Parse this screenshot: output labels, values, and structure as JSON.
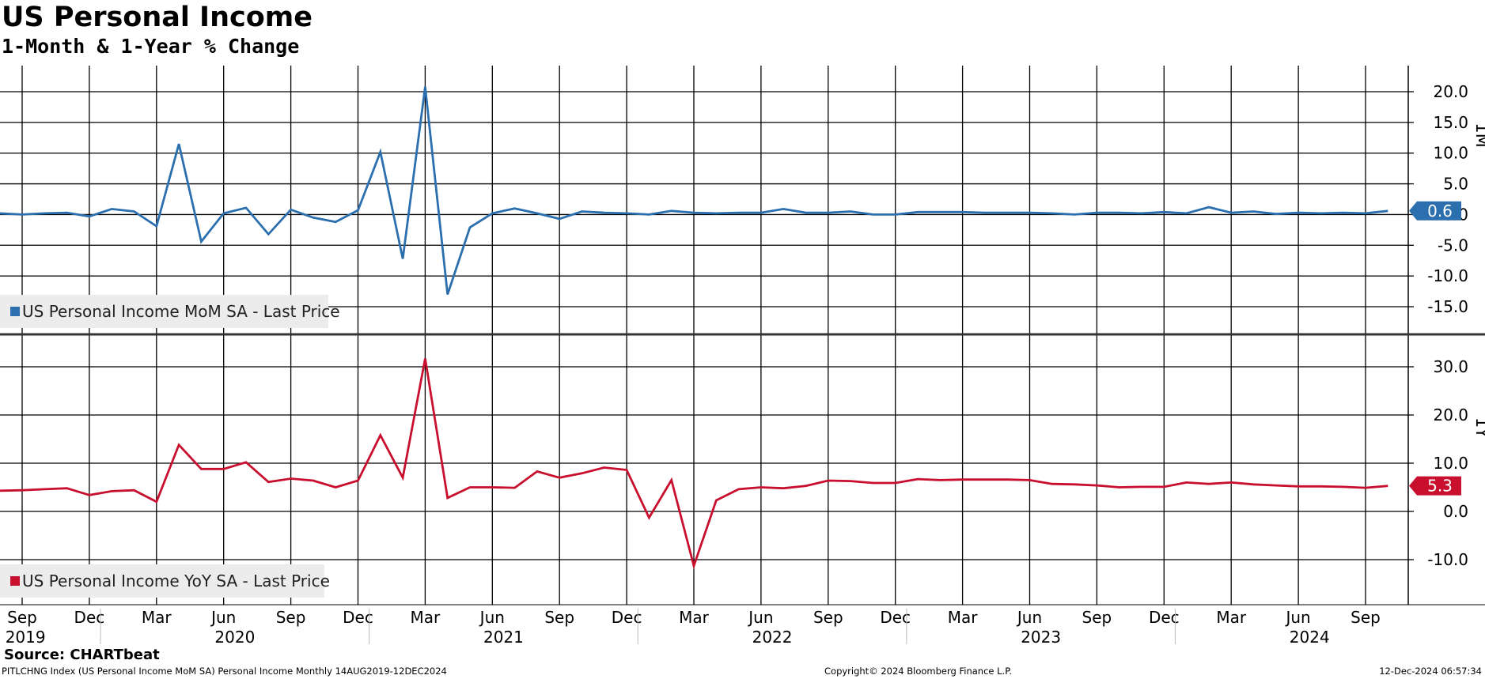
{
  "title": "US Personal Income",
  "subtitle": "1-Month & 1-Year % Change",
  "source": "Source: CHARTbeat",
  "footer": {
    "left": "PITLCHNG Index (US Personal Income MoM SA) Personal Income  Monthly 14AUG2019-12DEC2024",
    "center": "Copyright© 2024 Bloomberg Finance L.P.",
    "right": "12-Dec-2024 06:57:34"
  },
  "colors": {
    "mom": "#2c6fae",
    "yoy": "#c8102e",
    "grid": "#000000"
  },
  "chart_data": [
    {
      "type": "line",
      "axis_label": "1M",
      "legend": "US Personal Income MoM SA - Last Price",
      "legend_position": "bottom-left",
      "last_value_label": "0.6",
      "ylim": [
        -18,
        23
      ],
      "yticks": [
        "20.0",
        "15.0",
        "10.0",
        "5.0",
        "0.0",
        "-5.0",
        "-10.0",
        "-15.0"
      ],
      "ytick_values": [
        20,
        15,
        10,
        5,
        0,
        -5,
        -10,
        -15
      ],
      "x": [
        "2019-08",
        "2019-09",
        "2019-10",
        "2019-11",
        "2019-12",
        "2020-01",
        "2020-02",
        "2020-03",
        "2020-04",
        "2020-05",
        "2020-06",
        "2020-07",
        "2020-08",
        "2020-09",
        "2020-10",
        "2020-11",
        "2020-12",
        "2021-01",
        "2021-02",
        "2021-03",
        "2021-04",
        "2021-05",
        "2021-06",
        "2021-07",
        "2021-08",
        "2021-09",
        "2021-10",
        "2021-11",
        "2021-12",
        "2022-01",
        "2022-02",
        "2022-03",
        "2022-04",
        "2022-05",
        "2022-06",
        "2022-07",
        "2022-08",
        "2022-09",
        "2022-10",
        "2022-11",
        "2022-12",
        "2023-01",
        "2023-02",
        "2023-03",
        "2023-04",
        "2023-05",
        "2023-06",
        "2023-07",
        "2023-08",
        "2023-09",
        "2023-10",
        "2023-11",
        "2023-12",
        "2024-01",
        "2024-02",
        "2024-03",
        "2024-04",
        "2024-05",
        "2024-06",
        "2024-07",
        "2024-08",
        "2024-09",
        "2024-10"
      ],
      "series": [
        {
          "values": [
            0.2,
            0.0,
            0.2,
            0.3,
            -0.3,
            0.9,
            0.5,
            -1.9,
            11.5,
            -4.4,
            0.2,
            1.1,
            -3.2,
            0.8,
            -0.5,
            -1.2,
            0.7,
            10.2,
            -7.2,
            20.8,
            -13.0,
            -2.1,
            0.2,
            1.0,
            0.2,
            -0.7,
            0.5,
            0.3,
            0.2,
            0.0,
            0.6,
            0.3,
            0.2,
            0.3,
            0.3,
            0.9,
            0.3,
            0.3,
            0.5,
            0.0,
            0.0,
            0.4,
            0.4,
            0.4,
            0.3,
            0.3,
            0.3,
            0.2,
            0.0,
            0.3,
            0.3,
            0.2,
            0.4,
            0.2,
            1.2,
            0.3,
            0.5,
            0.1,
            0.3,
            0.2,
            0.3,
            0.2,
            0.6
          ]
        }
      ]
    },
    {
      "type": "line",
      "axis_label": "1Y",
      "legend": "US Personal Income YoY SA - Last Price",
      "legend_position": "bottom-left",
      "last_value_label": "5.3",
      "ylim": [
        -19,
        35
      ],
      "yticks": [
        "30.0",
        "20.0",
        "10.0",
        "0.0",
        "-10.0"
      ],
      "ytick_values": [
        30,
        20,
        10,
        0,
        -10
      ],
      "x": [
        "2019-08",
        "2019-09",
        "2019-10",
        "2019-11",
        "2019-12",
        "2020-01",
        "2020-02",
        "2020-03",
        "2020-04",
        "2020-05",
        "2020-06",
        "2020-07",
        "2020-08",
        "2020-09",
        "2020-10",
        "2020-11",
        "2020-12",
        "2021-01",
        "2021-02",
        "2021-03",
        "2021-04",
        "2021-05",
        "2021-06",
        "2021-07",
        "2021-08",
        "2021-09",
        "2021-10",
        "2021-11",
        "2021-12",
        "2022-01",
        "2022-02",
        "2022-03",
        "2022-04",
        "2022-05",
        "2022-06",
        "2022-07",
        "2022-08",
        "2022-09",
        "2022-10",
        "2022-11",
        "2022-12",
        "2023-01",
        "2023-02",
        "2023-03",
        "2023-04",
        "2023-05",
        "2023-06",
        "2023-07",
        "2023-08",
        "2023-09",
        "2023-10",
        "2023-11",
        "2023-12",
        "2024-01",
        "2024-02",
        "2024-03",
        "2024-04",
        "2024-05",
        "2024-06",
        "2024-07",
        "2024-08",
        "2024-09",
        "2024-10"
      ],
      "series": [
        {
          "values": [
            4.3,
            4.4,
            4.6,
            4.8,
            3.4,
            4.2,
            4.4,
            2.0,
            13.8,
            8.8,
            8.8,
            10.2,
            6.1,
            6.8,
            6.4,
            5.0,
            6.4,
            15.8,
            7.0,
            31.7,
            2.8,
            5.0,
            5.0,
            4.9,
            8.3,
            7.0,
            7.9,
            9.1,
            8.6,
            -1.3,
            6.5,
            -11.3,
            2.3,
            4.6,
            5.0,
            4.8,
            5.3,
            6.4,
            6.3,
            5.9,
            5.9,
            6.7,
            6.5,
            6.6,
            6.6,
            6.6,
            6.5,
            5.7,
            5.6,
            5.4,
            5.0,
            5.1,
            5.1,
            6.0,
            5.7,
            6.0,
            5.6,
            5.4,
            5.2,
            5.2,
            5.1,
            4.9,
            5.3
          ]
        }
      ]
    }
  ],
  "x_axis": {
    "months": [
      {
        "label": "Sep",
        "date": "2019-09"
      },
      {
        "label": "Dec",
        "date": "2019-12"
      },
      {
        "label": "Mar",
        "date": "2020-03"
      },
      {
        "label": "Jun",
        "date": "2020-06"
      },
      {
        "label": "Sep",
        "date": "2020-09"
      },
      {
        "label": "Dec",
        "date": "2020-12"
      },
      {
        "label": "Mar",
        "date": "2021-03"
      },
      {
        "label": "Jun",
        "date": "2021-06"
      },
      {
        "label": "Sep",
        "date": "2021-09"
      },
      {
        "label": "Dec",
        "date": "2021-12"
      },
      {
        "label": "Mar",
        "date": "2022-03"
      },
      {
        "label": "Jun",
        "date": "2022-06"
      },
      {
        "label": "Sep",
        "date": "2022-09"
      },
      {
        "label": "Dec",
        "date": "2022-12"
      },
      {
        "label": "Mar",
        "date": "2023-03"
      },
      {
        "label": "Jun",
        "date": "2023-06"
      },
      {
        "label": "Sep",
        "date": "2023-09"
      },
      {
        "label": "Dec",
        "date": "2023-12"
      },
      {
        "label": "Mar",
        "date": "2024-03"
      },
      {
        "label": "Jun",
        "date": "2024-06"
      },
      {
        "label": "Sep",
        "date": "2024-09"
      }
    ],
    "years": [
      "2019",
      "2020",
      "2021",
      "2022",
      "2023",
      "2024"
    ]
  }
}
